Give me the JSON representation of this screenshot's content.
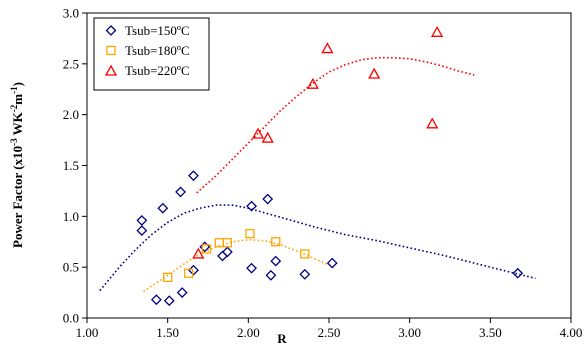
{
  "chart_data": {
    "type": "scatter",
    "xlabel": "R",
    "ylabel_base": "Power Factor (x10",
    "ylabel_exp1": "-3",
    "ylabel_mid": " WK",
    "ylabel_exp2": "-2",
    "ylabel_mid2": "m",
    "ylabel_exp3": "-1",
    "ylabel_end": ")",
    "xlim": [
      1.0,
      4.0
    ],
    "ylim": [
      0.0,
      3.0
    ],
    "x_ticks": [
      "1.00",
      "1.50",
      "2.00",
      "2.50",
      "3.00",
      "3.50",
      "4.00"
    ],
    "y_ticks": [
      "0.0",
      "0.5",
      "1.0",
      "1.5",
      "2.0",
      "2.5",
      "3.0"
    ],
    "grid": false,
    "legend_position": "top-left",
    "series": [
      {
        "name": "Tsub=150ºC",
        "marker": "diamond",
        "color": "#000080",
        "points": [
          [
            1.34,
            0.96
          ],
          [
            1.34,
            0.86
          ],
          [
            1.43,
            0.18
          ],
          [
            1.47,
            1.08
          ],
          [
            1.51,
            0.17
          ],
          [
            1.58,
            1.24
          ],
          [
            1.59,
            0.25
          ],
          [
            1.66,
            1.4
          ],
          [
            1.66,
            0.47
          ],
          [
            1.73,
            0.7
          ],
          [
            1.84,
            0.61
          ],
          [
            1.87,
            0.65
          ],
          [
            2.02,
            1.1
          ],
          [
            2.02,
            0.49
          ],
          [
            2.12,
            1.17
          ],
          [
            2.14,
            0.42
          ],
          [
            2.17,
            0.56
          ],
          [
            2.35,
            0.43
          ],
          [
            2.52,
            0.54
          ],
          [
            3.67,
            0.44
          ]
        ],
        "trend": [
          [
            1.08,
            0.27
          ],
          [
            1.2,
            0.5
          ],
          [
            1.3,
            0.67
          ],
          [
            1.4,
            0.82
          ],
          [
            1.5,
            0.94
          ],
          [
            1.6,
            1.03
          ],
          [
            1.7,
            1.08
          ],
          [
            1.8,
            1.11
          ],
          [
            1.9,
            1.11
          ],
          [
            2.0,
            1.08
          ],
          [
            2.2,
            0.99
          ],
          [
            2.4,
            0.9
          ],
          [
            2.6,
            0.82
          ],
          [
            2.8,
            0.76
          ],
          [
            3.0,
            0.69
          ],
          [
            3.2,
            0.62
          ],
          [
            3.4,
            0.54
          ],
          [
            3.6,
            0.46
          ],
          [
            3.78,
            0.39
          ]
        ]
      },
      {
        "name": "Tsub=180ºC",
        "marker": "square",
        "color": "#FFA500",
        "points": [
          [
            1.5,
            0.4
          ],
          [
            1.63,
            0.44
          ],
          [
            1.74,
            0.68
          ],
          [
            1.82,
            0.74
          ],
          [
            1.87,
            0.74
          ],
          [
            2.01,
            0.83
          ],
          [
            2.17,
            0.75
          ],
          [
            2.35,
            0.63
          ]
        ],
        "trend": [
          [
            1.35,
            0.26
          ],
          [
            1.5,
            0.42
          ],
          [
            1.6,
            0.53
          ],
          [
            1.7,
            0.63
          ],
          [
            1.8,
            0.7
          ],
          [
            1.9,
            0.75
          ],
          [
            2.0,
            0.77
          ],
          [
            2.1,
            0.76
          ],
          [
            2.2,
            0.72
          ],
          [
            2.3,
            0.66
          ],
          [
            2.4,
            0.59
          ],
          [
            2.53,
            0.5
          ]
        ]
      },
      {
        "name": "Tsub=220ºC",
        "marker": "triangle",
        "color": "#FF0000",
        "points": [
          [
            1.69,
            0.63
          ],
          [
            2.06,
            1.81
          ],
          [
            2.12,
            1.77
          ],
          [
            2.4,
            2.3
          ],
          [
            2.49,
            2.65
          ],
          [
            2.78,
            2.4
          ],
          [
            3.14,
            1.91
          ],
          [
            3.17,
            2.81
          ]
        ],
        "trend": [
          [
            1.68,
            1.23
          ],
          [
            1.8,
            1.4
          ],
          [
            1.9,
            1.56
          ],
          [
            2.0,
            1.72
          ],
          [
            2.1,
            1.88
          ],
          [
            2.2,
            2.04
          ],
          [
            2.3,
            2.18
          ],
          [
            2.4,
            2.31
          ],
          [
            2.5,
            2.42
          ],
          [
            2.6,
            2.49
          ],
          [
            2.7,
            2.54
          ],
          [
            2.8,
            2.56
          ],
          [
            2.9,
            2.56
          ],
          [
            3.0,
            2.55
          ],
          [
            3.1,
            2.52
          ],
          [
            3.2,
            2.48
          ],
          [
            3.3,
            2.43
          ],
          [
            3.4,
            2.39
          ]
        ]
      }
    ]
  }
}
